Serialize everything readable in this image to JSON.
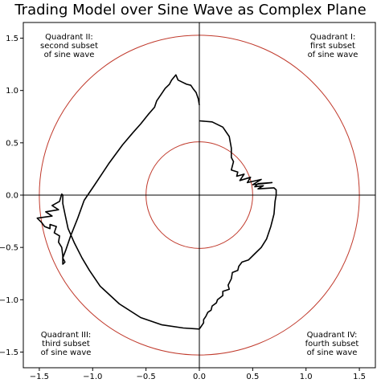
{
  "chart_data": {
    "type": "line",
    "title": "Trading Model over Sine Wave as Complex Plane",
    "xlabel": "",
    "ylabel": "",
    "xlim": [
      -1.65,
      1.65
    ],
    "ylim": [
      -1.65,
      1.65
    ],
    "xticks": [
      "−1.5",
      "−1.0",
      "−0.5",
      "0.0",
      "0.5",
      "1.0",
      "1.5"
    ],
    "yticks": [
      "1.5",
      "1.0",
      "0.5",
      "0.0",
      "−0.5",
      "−1.0",
      "−1.5"
    ],
    "xtick_values": [
      -1.5,
      -1.0,
      -0.5,
      0.0,
      0.5,
      1.0,
      1.5
    ],
    "ytick_values": [
      1.5,
      1.0,
      0.5,
      0.0,
      -0.5,
      -1.0,
      -1.5
    ],
    "grid": false,
    "reference_circles": [
      {
        "radius": 0.5,
        "color": "#c0392b"
      },
      {
        "radius": 1.5,
        "color": "#c0392b"
      }
    ],
    "quadrant_labels": [
      {
        "lines": [
          "Quadrant I:",
          "first subset",
          "of sine wave"
        ]
      },
      {
        "lines": [
          "Quadrant II:",
          "second subset",
          "of sine wave"
        ]
      },
      {
        "lines": [
          "Quadrant III:",
          "third subset",
          "of sine wave"
        ]
      },
      {
        "lines": [
          "Quadrant IV:",
          "fourth subset",
          "of sine wave"
        ]
      }
    ],
    "series": [
      {
        "color": "#000000",
        "x": [
          0.0,
          0.12,
          0.22,
          0.28,
          0.3,
          0.3,
          0.32,
          0.3,
          0.36,
          0.35,
          0.42,
          0.38,
          0.48,
          0.45,
          0.58,
          0.5,
          0.68,
          0.55,
          0.52,
          0.6,
          0.55,
          0.7,
          0.72,
          0.72,
          0.71,
          0.7,
          0.67,
          0.63,
          0.58,
          0.52,
          0.46,
          0.4,
          0.37,
          0.36,
          0.31,
          0.3,
          0.27,
          0.28,
          0.22,
          0.22,
          0.17,
          0.16,
          0.12,
          0.11,
          0.08,
          0.06,
          0.04,
          0.04,
          0.02,
          0.0,
          -0.15,
          -0.35,
          -0.55,
          -0.75,
          -0.93,
          -1.03,
          -1.1,
          -1.17,
          -1.23,
          -1.26,
          -1.28,
          -1.28,
          -1.29,
          -1.31,
          -1.38,
          -1.32,
          -1.44,
          -1.38,
          -1.52,
          -1.48,
          -1.45,
          -1.4,
          -1.4,
          -1.34,
          -1.36,
          -1.31,
          -1.32,
          -1.29,
          -1.28,
          -1.28,
          -1.26,
          -1.27,
          -1.28,
          -1.25,
          -1.21,
          -1.14,
          -1.08,
          -0.98,
          -0.85,
          -0.72,
          -0.62,
          -0.55,
          -0.48,
          -0.42,
          -0.4,
          -0.36,
          -0.32,
          -0.28,
          -0.26,
          -0.22,
          -0.2,
          -0.16,
          -0.12,
          -0.08,
          -0.06,
          -0.03,
          -0.01,
          0.0
        ],
        "y": [
          0.71,
          0.7,
          0.65,
          0.56,
          0.45,
          0.36,
          0.32,
          0.24,
          0.22,
          0.18,
          0.2,
          0.14,
          0.17,
          0.12,
          0.15,
          0.1,
          0.12,
          0.11,
          0.08,
          0.09,
          0.06,
          0.07,
          0.05,
          0.0,
          -0.06,
          -0.18,
          -0.3,
          -0.42,
          -0.5,
          -0.56,
          -0.62,
          -0.64,
          -0.68,
          -0.72,
          -0.74,
          -0.8,
          -0.86,
          -0.9,
          -0.92,
          -0.96,
          -1.0,
          -1.03,
          -1.06,
          -1.1,
          -1.12,
          -1.16,
          -1.19,
          -1.22,
          -1.25,
          -1.28,
          -1.27,
          -1.24,
          -1.17,
          -1.04,
          -0.87,
          -0.72,
          -0.6,
          -0.46,
          -0.32,
          -0.18,
          -0.08,
          0.0,
          0.01,
          -0.06,
          -0.1,
          -0.14,
          -0.16,
          -0.2,
          -0.22,
          -0.26,
          -0.3,
          -0.32,
          -0.28,
          -0.3,
          -0.36,
          -0.39,
          -0.45,
          -0.5,
          -0.58,
          -0.66,
          -0.64,
          -0.62,
          -0.6,
          -0.52,
          -0.4,
          -0.22,
          -0.05,
          0.1,
          0.3,
          0.48,
          0.6,
          0.68,
          0.77,
          0.84,
          0.9,
          0.96,
          1.02,
          1.06,
          1.1,
          1.15,
          1.1,
          1.08,
          1.06,
          1.05,
          1.02,
          0.98,
          0.92,
          0.86
        ]
      }
    ]
  }
}
